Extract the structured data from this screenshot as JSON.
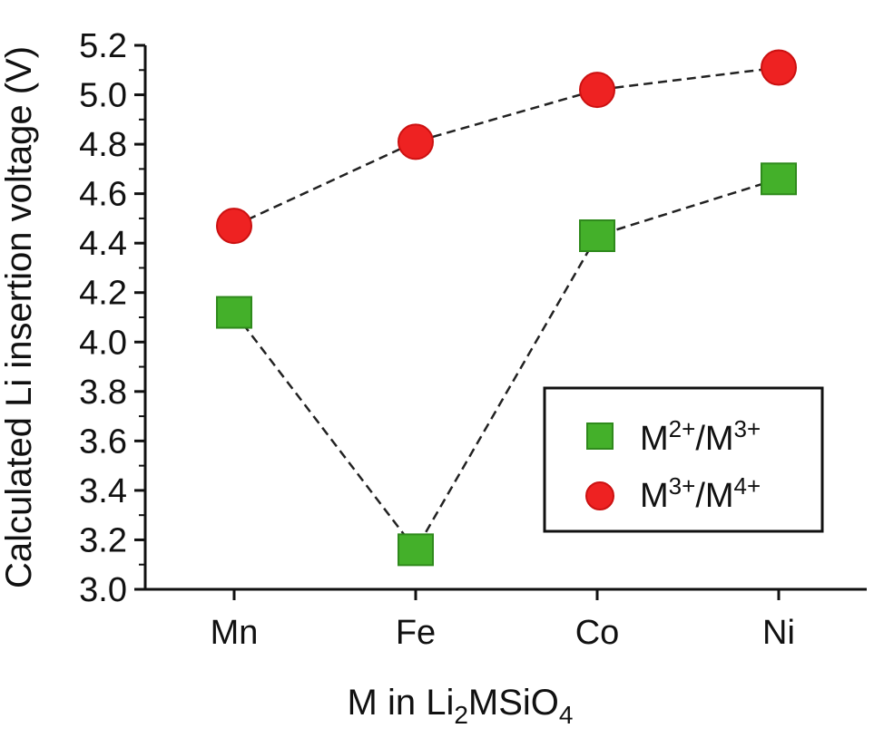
{
  "chart_data": {
    "type": "scatter",
    "categories": [
      "Mn",
      "Fe",
      "Co",
      "Ni"
    ],
    "xlabel_parts": [
      "M in Li",
      "2",
      "MSiO",
      "4"
    ],
    "ylabel": "Calculated Li insertion voltage (V)",
    "ylim": [
      3.0,
      5.2
    ],
    "yticks": [
      "3.0",
      "3.2",
      "3.4",
      "3.6",
      "3.8",
      "4.0",
      "4.2",
      "4.4",
      "4.6",
      "4.8",
      "5.0",
      "5.2"
    ],
    "legend_position": "lower-right",
    "series": [
      {
        "name_parts": [
          "M",
          "2+",
          "/M",
          "3+"
        ],
        "marker": "square",
        "color": "#44b02a",
        "values": [
          4.12,
          3.16,
          4.43,
          4.66
        ]
      },
      {
        "name_parts": [
          "M",
          "3+",
          "/M",
          "4+"
        ],
        "marker": "circle",
        "color": "#ee2222",
        "values": [
          4.47,
          4.81,
          5.02,
          5.11
        ]
      }
    ],
    "connector_style": "dashed",
    "connector_color": "#222222"
  }
}
